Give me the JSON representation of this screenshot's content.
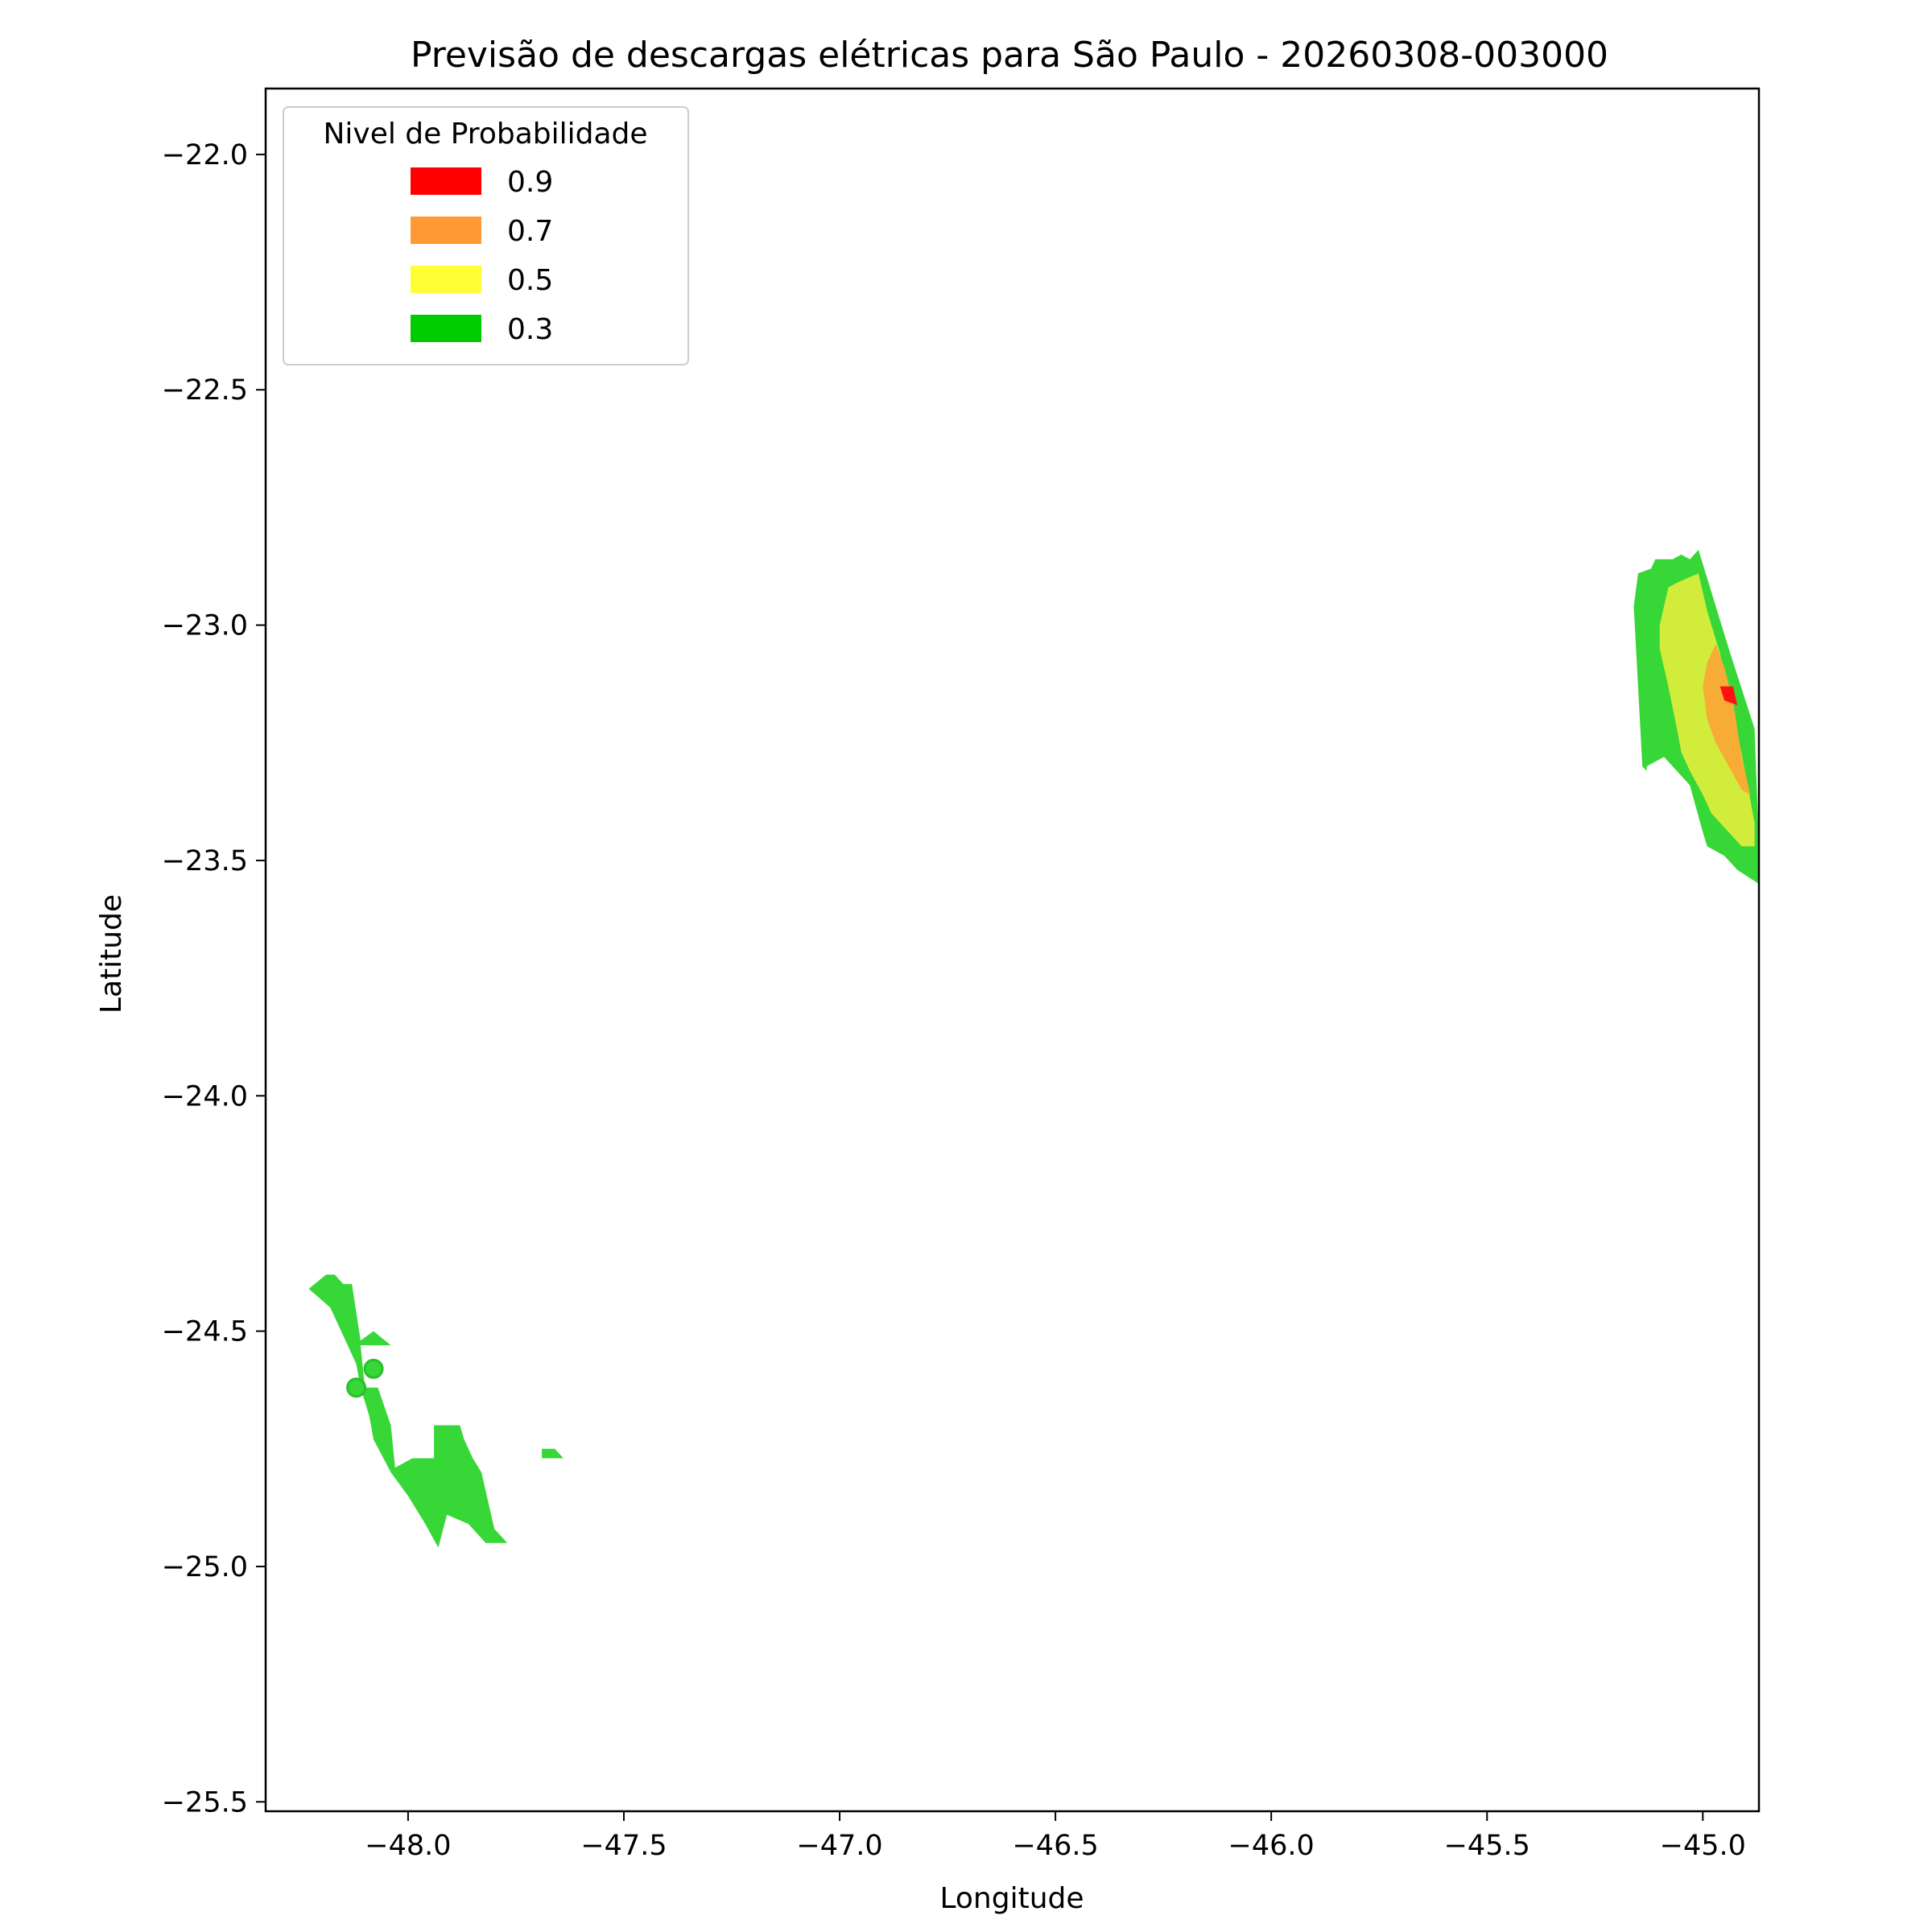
{
  "chart_data": {
    "type": "contour-map",
    "title": "Previsão de descargas elétricas para São Paulo - 20260308-003000",
    "xlabel": "Longitude",
    "ylabel": "Latitude",
    "xlim": [
      -48.33,
      -44.87
    ],
    "ylim": [
      -25.52,
      -21.86
    ],
    "xticks": [
      -48.0,
      -47.5,
      -47.0,
      -46.5,
      -46.0,
      -45.5,
      -45.0
    ],
    "xtick_labels": [
      "−48.0",
      "−47.5",
      "−47.0",
      "−46.5",
      "−46.0",
      "−45.5",
      "−45.0"
    ],
    "yticks": [
      -22.0,
      -22.5,
      -23.0,
      -23.5,
      -24.0,
      -24.5,
      -25.0,
      -25.5
    ],
    "ytick_labels": [
      "−22.0",
      "−22.5",
      "−23.0",
      "−23.5",
      "−24.0",
      "−24.5",
      "−25.0",
      "−25.5"
    ],
    "grid": false,
    "legend": {
      "title": "Nivel de Probabilidade",
      "position": "top-left",
      "entries": [
        {
          "label": "0.9",
          "color": "#ff0000"
        },
        {
          "label": "0.7",
          "color": "#ff9933"
        },
        {
          "label": "0.5",
          "color": "#ffff33"
        },
        {
          "label": "0.3",
          "color": "#00cc00"
        }
      ]
    },
    "regions": [
      {
        "level": "0.3",
        "color": "#36d736",
        "points": [
          [
            -45.15,
            -22.89
          ],
          [
            -45.12,
            -22.88
          ],
          [
            -45.11,
            -22.86
          ],
          [
            -45.07,
            -22.86
          ],
          [
            -45.05,
            -22.85
          ],
          [
            -45.03,
            -22.86
          ],
          [
            -45.01,
            -22.84
          ],
          [
            -44.99,
            -22.9
          ],
          [
            -44.94,
            -23.05
          ],
          [
            -44.88,
            -23.22
          ],
          [
            -44.87,
            -23.47
          ],
          [
            -44.87,
            -23.55
          ],
          [
            -44.92,
            -23.52
          ],
          [
            -44.95,
            -23.49
          ],
          [
            -44.99,
            -23.47
          ],
          [
            -45.0,
            -23.44
          ],
          [
            -45.03,
            -23.34
          ],
          [
            -45.07,
            -23.3
          ],
          [
            -45.09,
            -23.28
          ],
          [
            -45.11,
            -23.29
          ],
          [
            -45.13,
            -23.3
          ],
          [
            -45.13,
            -23.31
          ],
          [
            -45.14,
            -23.3
          ],
          [
            -45.16,
            -22.96
          ]
        ]
      },
      {
        "level": "0.3",
        "color": "#36d736",
        "points": [
          [
            -48.23,
            -24.41
          ],
          [
            -48.19,
            -24.38
          ],
          [
            -48.17,
            -24.38
          ],
          [
            -48.15,
            -24.4
          ],
          [
            -48.13,
            -24.4
          ],
          [
            -48.11,
            -24.52
          ],
          [
            -48.08,
            -24.5
          ],
          [
            -48.04,
            -24.53
          ],
          [
            -48.11,
            -24.53
          ],
          [
            -48.1,
            -24.62
          ],
          [
            -48.07,
            -24.62
          ],
          [
            -48.04,
            -24.7
          ],
          [
            -48.03,
            -24.79
          ],
          [
            -47.99,
            -24.77
          ],
          [
            -47.94,
            -24.77
          ],
          [
            -47.94,
            -24.7
          ],
          [
            -47.88,
            -24.7
          ],
          [
            -47.87,
            -24.73
          ],
          [
            -47.85,
            -24.77
          ],
          [
            -47.83,
            -24.8
          ],
          [
            -47.8,
            -24.92
          ],
          [
            -47.77,
            -24.95
          ],
          [
            -47.82,
            -24.95
          ],
          [
            -47.86,
            -24.91
          ],
          [
            -47.91,
            -24.89
          ],
          [
            -47.93,
            -24.96
          ],
          [
            -47.96,
            -24.91
          ],
          [
            -48.0,
            -24.85
          ],
          [
            -48.04,
            -24.8
          ],
          [
            -48.08,
            -24.73
          ],
          [
            -48.09,
            -24.68
          ],
          [
            -48.11,
            -24.62
          ],
          [
            -48.12,
            -24.57
          ],
          [
            -48.18,
            -24.45
          ],
          [
            -48.23,
            -24.41
          ]
        ]
      },
      {
        "level": "0.3",
        "color": "#36d736",
        "points": [
          [
            -47.69,
            -24.75
          ],
          [
            -47.66,
            -24.75
          ],
          [
            -47.64,
            -24.77
          ],
          [
            -47.69,
            -24.77
          ]
        ]
      },
      {
        "level": "0.5",
        "color": "#d2ec3c",
        "points": [
          [
            -45.1,
            -23.0
          ],
          [
            -45.09,
            -22.96
          ],
          [
            -45.08,
            -22.92
          ],
          [
            -45.06,
            -22.91
          ],
          [
            -45.01,
            -22.89
          ],
          [
            -44.99,
            -22.97
          ],
          [
            -44.96,
            -23.06
          ],
          [
            -44.93,
            -23.18
          ],
          [
            -44.9,
            -23.32
          ],
          [
            -44.88,
            -23.42
          ],
          [
            -44.88,
            -23.47
          ],
          [
            -44.91,
            -23.47
          ],
          [
            -44.95,
            -23.43
          ],
          [
            -44.98,
            -23.4
          ],
          [
            -45.0,
            -23.36
          ],
          [
            -45.03,
            -23.31
          ],
          [
            -45.05,
            -23.27
          ],
          [
            -45.06,
            -23.22
          ],
          [
            -45.08,
            -23.13
          ],
          [
            -45.1,
            -23.05
          ]
        ]
      },
      {
        "level": "0.7",
        "color": "#f6ac35",
        "points": [
          [
            -45.0,
            -23.13
          ],
          [
            -44.99,
            -23.08
          ],
          [
            -44.97,
            -23.04
          ],
          [
            -44.95,
            -23.09
          ],
          [
            -44.93,
            -23.16
          ],
          [
            -44.91,
            -23.28
          ],
          [
            -44.89,
            -23.36
          ],
          [
            -44.91,
            -23.35
          ],
          [
            -44.94,
            -23.3
          ],
          [
            -44.97,
            -23.25
          ],
          [
            -44.99,
            -23.2
          ]
        ]
      },
      {
        "level": "0.9",
        "color": "#ff1111",
        "points": [
          [
            -44.96,
            -23.13
          ],
          [
            -44.93,
            -23.13
          ],
          [
            -44.92,
            -23.17
          ],
          [
            -44.95,
            -23.16
          ]
        ]
      }
    ],
    "markers": [
      {
        "lon": -48.12,
        "lat": -24.62,
        "color": "#36d736"
      },
      {
        "lon": -48.08,
        "lat": -24.58,
        "color": "#36d736"
      }
    ]
  }
}
